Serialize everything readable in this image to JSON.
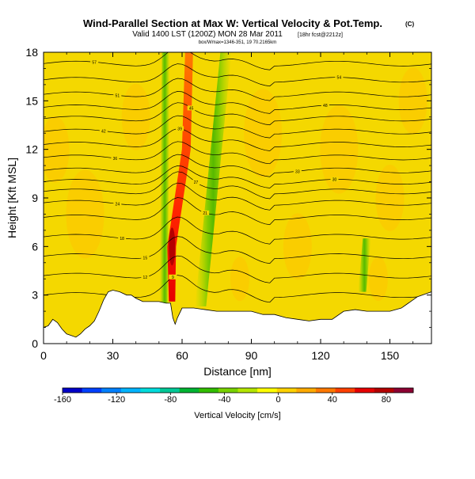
{
  "chart_data": {
    "type": "heatmap",
    "title": "Wind-Parallel Section at Max W: Vertical Velocity & Pot.Temp.",
    "title_mark": "(C)",
    "subtitle": "Valid 1400 LST (1200Z) MON 28 Mar 2011",
    "subtitle_extra": "[18hr fcst@2212z]",
    "subtitle_small": "box/Wmax=1346-351, 19 70.2165km",
    "xlabel": "Distance [nm]",
    "ylabel": "Height [Kft MSL]",
    "xlim": [
      0,
      168
    ],
    "ylim": [
      0,
      18
    ],
    "x_ticks": [
      0,
      30,
      60,
      90,
      120,
      150
    ],
    "y_ticks": [
      0,
      3,
      6,
      9,
      12,
      15,
      18
    ],
    "colorbar": {
      "label": "Vertical Velocity [cm/s]",
      "range": [
        -160,
        100
      ],
      "ticks": [
        -160,
        -120,
        -80,
        -40,
        0,
        40,
        80
      ],
      "colors": [
        "#0000c8",
        "#0040ff",
        "#0080ff",
        "#00b4ff",
        "#00dcdc",
        "#00c896",
        "#00b432",
        "#32be00",
        "#78d200",
        "#b4e600",
        "#ffff00",
        "#ffd200",
        "#ffaa00",
        "#ff7800",
        "#ff4000",
        "#e60000",
        "#b40000",
        "#8c0032"
      ]
    },
    "terrain_profile": [
      [
        0,
        1.0
      ],
      [
        2,
        1.1
      ],
      [
        4,
        1.5
      ],
      [
        6,
        1.3
      ],
      [
        8,
        0.9
      ],
      [
        10,
        0.6
      ],
      [
        12,
        0.5
      ],
      [
        14,
        0.4
      ],
      [
        16,
        0.6
      ],
      [
        18,
        0.9
      ],
      [
        20,
        1.1
      ],
      [
        22,
        1.4
      ],
      [
        24,
        2.0
      ],
      [
        26,
        2.7
      ],
      [
        28,
        3.2
      ],
      [
        30,
        3.3
      ],
      [
        33,
        3.2
      ],
      [
        36,
        3.0
      ],
      [
        38,
        3.0
      ],
      [
        40,
        2.8
      ],
      [
        43,
        2.6
      ],
      [
        46,
        2.6
      ],
      [
        50,
        2.6
      ],
      [
        53,
        2.5
      ],
      [
        55,
        2.5
      ],
      [
        56,
        1.6
      ],
      [
        57,
        1.2
      ],
      [
        58,
        1.6
      ],
      [
        60,
        2.2
      ],
      [
        65,
        2.2
      ],
      [
        70,
        2.1
      ],
      [
        75,
        2.0
      ],
      [
        80,
        2.0
      ],
      [
        85,
        2.0
      ],
      [
        90,
        2.0
      ],
      [
        95,
        1.8
      ],
      [
        100,
        1.8
      ],
      [
        105,
        1.6
      ],
      [
        110,
        1.5
      ],
      [
        115,
        1.4
      ],
      [
        120,
        1.5
      ],
      [
        125,
        1.5
      ],
      [
        130,
        2.0
      ],
      [
        135,
        2.1
      ],
      [
        140,
        2.0
      ],
      [
        145,
        2.0
      ],
      [
        150,
        2.0
      ],
      [
        155,
        2.2
      ],
      [
        158,
        2.5
      ],
      [
        162,
        2.9
      ],
      [
        168,
        3.2
      ]
    ],
    "updraft_core": {
      "x_base": 56,
      "x_top": 62,
      "peak_cm_s": 100
    },
    "downdraft_bands": [
      {
        "x_base": 52,
        "x_top": 53
      },
      {
        "x_base": 68,
        "x_top": 79
      },
      {
        "x_base": 138,
        "x_top": 140
      }
    ],
    "isentropes": [
      {
        "label": "9",
        "base": 3.0,
        "label_x": 56
      },
      {
        "label": "12",
        "base": 4.2,
        "label_x": 44
      },
      {
        "label": "15",
        "base": 5.4,
        "label_x": 44
      },
      {
        "label": "18",
        "base": 6.6,
        "label_x": 34
      },
      {
        "label": "21",
        "base": 7.8,
        "label_x": 70
      },
      {
        "label": "24",
        "base": 8.7,
        "label_x": 32
      },
      {
        "label": "27",
        "base": 9.4,
        "label_x": 66
      },
      {
        "label": "30",
        "base": 10.0,
        "label_x": 126
      },
      {
        "label": "33",
        "base": 10.7,
        "label_x": 110
      },
      {
        "label": "36",
        "base": 11.5,
        "label_x": 31
      },
      {
        "label": "39",
        "base": 12.3,
        "label_x": 59
      },
      {
        "label": "42",
        "base": 13.1,
        "label_x": 26
      },
      {
        "label": "45",
        "base": 13.9,
        "label_x": 64
      },
      {
        "label": "48",
        "base": 14.6,
        "label_x": 122
      },
      {
        "label": "51",
        "base": 15.4,
        "label_x": 32
      },
      {
        "label": "54",
        "base": 16.3,
        "label_x": 128
      },
      {
        "label": "57",
        "base": 17.3,
        "label_x": 22
      }
    ]
  }
}
